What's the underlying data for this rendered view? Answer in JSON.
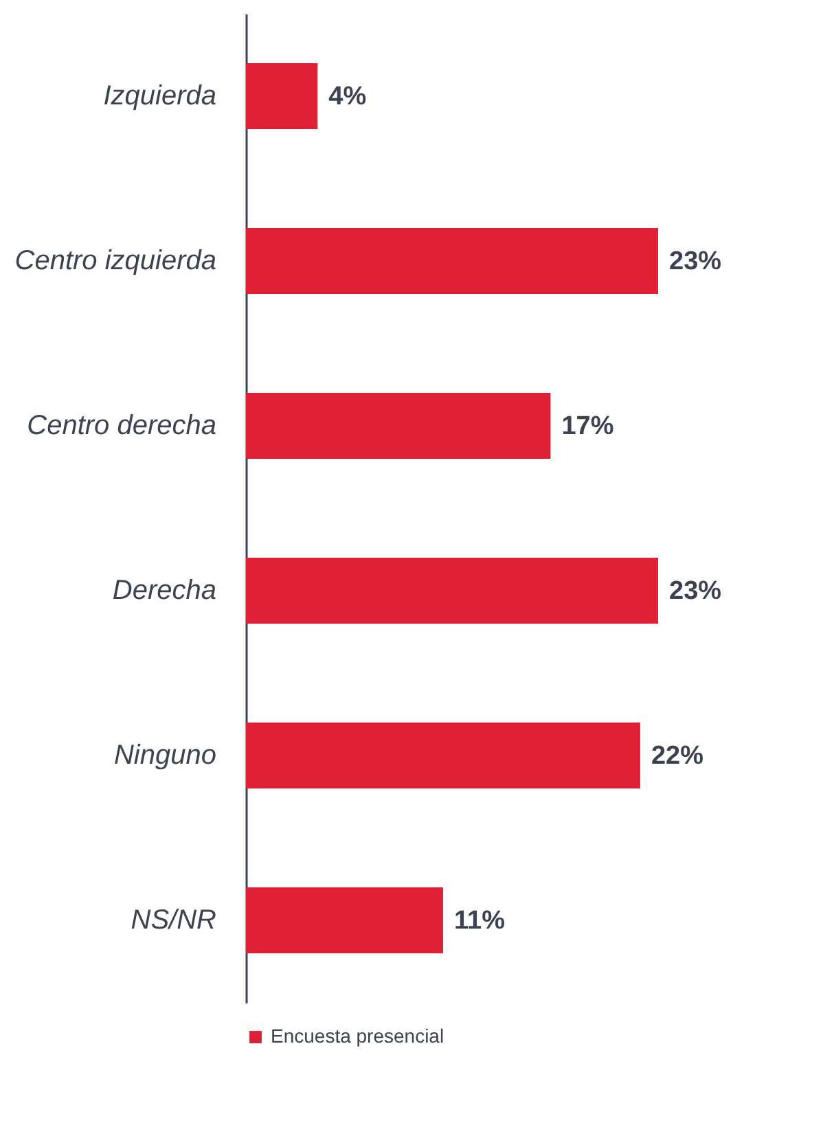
{
  "chart_data": {
    "type": "bar",
    "orientation": "horizontal",
    "categories": [
      "Izquierda",
      "Centro izquierda",
      "Centro derecha",
      "Derecha",
      "Ninguno",
      "NS/NR"
    ],
    "series": [
      {
        "name": "Encuesta presencial",
        "color": "#e02035",
        "values": [
          4,
          23,
          17,
          23,
          22,
          11
        ],
        "value_labels": [
          "4%",
          "23%",
          "17%",
          "23%",
          "22%",
          "11%"
        ]
      }
    ],
    "legend": "bottom",
    "grid": false
  }
}
